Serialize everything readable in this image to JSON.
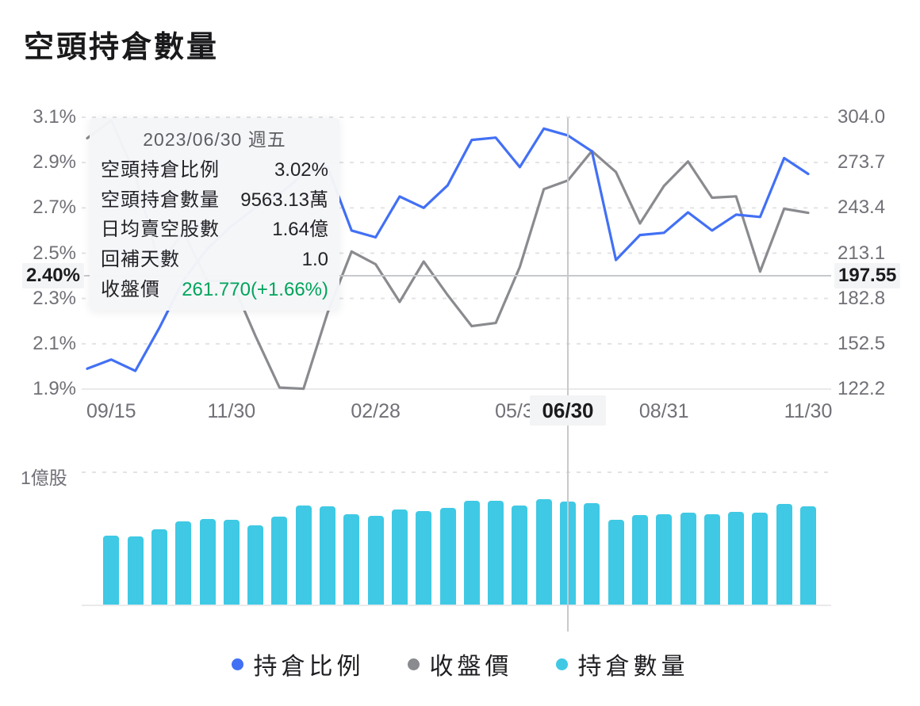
{
  "title": "空頭持倉數量",
  "tooltip": {
    "date": "2023/06/30 週五",
    "rows": [
      {
        "label": "空頭持倉比例",
        "value": "3.02%"
      },
      {
        "label": "空頭持倉數量",
        "value": "9563.13萬"
      },
      {
        "label": "日均賣空股數",
        "value": "1.64億"
      },
      {
        "label": "回補天數",
        "value": "1.0"
      },
      {
        "label": "收盤價",
        "value": "261.770(+1.66%)",
        "color": "#00A45C"
      }
    ]
  },
  "axes": {
    "left_labels": [
      "3.1%",
      "2.9%",
      "2.7%",
      "2.5%",
      "2.3%",
      "2.1%",
      "1.9%"
    ],
    "right_labels": [
      "304.0",
      "273.7",
      "243.4",
      "213.1",
      "182.8",
      "152.5",
      "122.2"
    ],
    "x_ticks": [
      {
        "index": 1,
        "label": "09/15"
      },
      {
        "index": 6,
        "label": "11/30"
      },
      {
        "index": 12,
        "label": "02/28"
      },
      {
        "index": 18,
        "label": "05/31"
      },
      {
        "index": 24,
        "label": "08/31"
      },
      {
        "index": 30,
        "label": "11/30"
      }
    ],
    "volume_unit_label": "1億股"
  },
  "crosshair": {
    "point_index": 20,
    "date_label": "06/30",
    "left_label": "2.40%",
    "right_label": "197.55"
  },
  "legend": [
    {
      "label": "持倉比例",
      "color": "#4270F5"
    },
    {
      "label": "收盤價",
      "color": "#8A8B8F"
    },
    {
      "label": "持倉數量",
      "color": "#3FC9E4"
    }
  ],
  "chart_data": {
    "type": "line+bar",
    "title": "空頭持倉數量",
    "left_axis": {
      "min": 1.9,
      "max": 3.1,
      "unit": "%",
      "grid": "dashed"
    },
    "right_axis": {
      "min": 122.2,
      "max": 304.0,
      "unit": "",
      "grid": "shared"
    },
    "volume_axis": {
      "gridline_value_yi": 1.0,
      "gridline_label": "1億股"
    },
    "series": [
      {
        "name": "持倉比例",
        "type": "line",
        "axis": "left",
        "unit": "%",
        "color": "#4270F5",
        "values": [
          1.99,
          2.03,
          1.98,
          2.17,
          2.38,
          2.52,
          2.62,
          2.7,
          2.76,
          2.85,
          2.88,
          2.6,
          2.57,
          2.75,
          2.7,
          2.8,
          3.0,
          3.01,
          2.88,
          3.05,
          3.02,
          2.95,
          2.47,
          2.58,
          2.59,
          2.68,
          2.6,
          2.67,
          2.66,
          2.92,
          2.85
        ]
      },
      {
        "name": "收盤價",
        "type": "line",
        "axis": "right",
        "unit": "",
        "color": "#8A8B8F",
        "values": [
          290.0,
          302.0,
          265.3,
          205.0,
          227.5,
          194.4,
          194.7,
          157.7,
          123.2,
          122.4,
          173.2,
          214.2,
          205.7,
          180.5,
          207.5,
          185.0,
          164.3,
          166.4,
          203.9,
          255.9,
          261.77,
          281.4,
          267.4,
          233.0,
          258.1,
          274.4,
          250.2,
          251.1,
          200.8,
          242.8,
          240.1
        ]
      },
      {
        "name": "持倉數量",
        "type": "bar",
        "axis": "volume",
        "unit": "億股",
        "color": "#3FC9E4",
        "x_start_index": 1,
        "values": [
          0.638,
          0.63,
          0.696,
          0.768,
          0.79,
          0.783,
          0.732,
          0.812,
          0.913,
          0.906,
          0.833,
          0.819,
          0.877,
          0.862,
          0.891,
          0.957,
          0.957,
          0.92,
          0.978,
          0.9563,
          0.935,
          0.783,
          0.826,
          0.833,
          0.848,
          0.833,
          0.855,
          0.848,
          0.928,
          0.906
        ]
      }
    ],
    "crosshair_point": {
      "date": "2023/06/30",
      "持倉比例": 3.02,
      "收盤價": 261.77,
      "持倉數量_萬": 9563.13
    }
  }
}
